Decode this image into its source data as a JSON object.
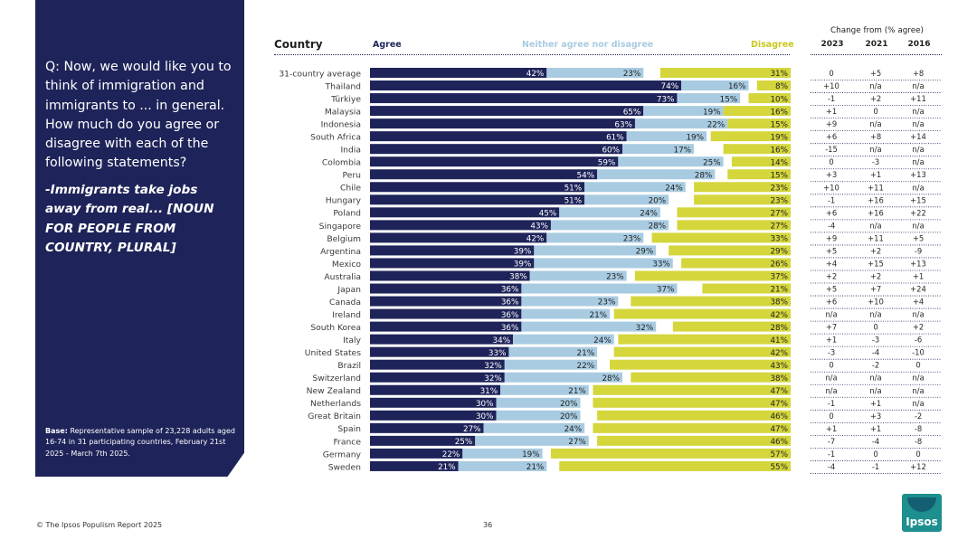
{
  "sidebar": {
    "question": "Q: Now, we would like you to think of immigration and immigrants to ... in general. How much do you agree or disagree with each of the following statements?",
    "statement": "-Immigrants take jobs away from real... [NOUN FOR PEOPLE FROM COUNTRY, PLURAL]",
    "base_label": "Base:",
    "base_text": "Representative sample of 23,228 adults aged 16-74 in 31 participating countries, February 21st 2025 - March 7th 2025."
  },
  "header": {
    "country": "Country",
    "agree": "Agree",
    "neither": "Neither agree nor disagree",
    "disagree": "Disagree",
    "change_from": "Change from (% agree)",
    "years": [
      "2023",
      "2021",
      "2016"
    ]
  },
  "colors": {
    "agree": "#1e2459",
    "neither": "#a8cbe1",
    "disagree": "#d4d63c",
    "sidebar": "#1e2459"
  },
  "chart_data": {
    "type": "bar",
    "stacked": true,
    "orientation": "horizontal",
    "categories": [
      "31-country average",
      "Thailand",
      "Türkiye",
      "Malaysia",
      "Indonesia",
      "South Africa",
      "India",
      "Colombia",
      "Peru",
      "Chile",
      "Hungary",
      "Poland",
      "Singapore",
      "Belgium",
      "Argentina",
      "Mexico",
      "Australia",
      "Japan",
      "Canada",
      "Ireland",
      "South Korea",
      "Italy",
      "United States",
      "Brazil",
      "Switzerland",
      "New Zealand",
      "Netherlands",
      "Great Britain",
      "Spain",
      "France",
      "Germany",
      "Sweden"
    ],
    "series": [
      {
        "name": "Agree",
        "values": [
          42,
          74,
          73,
          65,
          63,
          61,
          60,
          59,
          54,
          51,
          51,
          45,
          43,
          42,
          39,
          39,
          38,
          36,
          36,
          36,
          36,
          34,
          33,
          32,
          32,
          31,
          30,
          30,
          27,
          25,
          22,
          21
        ]
      },
      {
        "name": "Neither agree nor disagree",
        "values": [
          23,
          16,
          15,
          19,
          22,
          19,
          17,
          25,
          28,
          24,
          20,
          24,
          28,
          23,
          29,
          33,
          23,
          37,
          23,
          21,
          32,
          24,
          21,
          22,
          28,
          21,
          20,
          20,
          24,
          27,
          19,
          21
        ]
      },
      {
        "name": "Disagree",
        "values": [
          31,
          8,
          10,
          16,
          15,
          19,
          16,
          14,
          15,
          23,
          23,
          27,
          27,
          33,
          29,
          26,
          37,
          21,
          38,
          42,
          28,
          41,
          42,
          43,
          38,
          47,
          47,
          46,
          47,
          46,
          57,
          55
        ]
      }
    ],
    "change": {
      "2023": [
        "0",
        "+10",
        "-1",
        "+1",
        "+9",
        "+6",
        "-15",
        "0",
        "+3",
        "+10",
        "-1",
        "+6",
        "-4",
        "+9",
        "+5",
        "+4",
        "+2",
        "+5",
        "+6",
        "n/a",
        "+7",
        "+1",
        "-3",
        "0",
        "n/a",
        "n/a",
        "-1",
        "0",
        "+1",
        "-7",
        "-1",
        "-4"
      ],
      "2021": [
        "+5",
        "n/a",
        "+2",
        "0",
        "n/a",
        "+8",
        "n/a",
        "-3",
        "+1",
        "+11",
        "+16",
        "+16",
        "n/a",
        "+11",
        "+2",
        "+15",
        "+2",
        "+7",
        "+10",
        "n/a",
        "0",
        "-3",
        "-4",
        "-2",
        "n/a",
        "n/a",
        "+1",
        "+3",
        "+1",
        "-4",
        "0",
        "-1"
      ],
      "2016": [
        "+8",
        "n/a",
        "+11",
        "n/a",
        "n/a",
        "+14",
        "n/a",
        "n/a",
        "+13",
        "n/a",
        "+15",
        "+22",
        "n/a",
        "+5",
        "-9",
        "+13",
        "+1",
        "+24",
        "+4",
        "n/a",
        "+2",
        "-6",
        "-10",
        "0",
        "n/a",
        "n/a",
        "n/a",
        "-2",
        "-8",
        "-8",
        "0",
        "+12"
      ]
    },
    "xlim": [
      0,
      100
    ],
    "legend": "top"
  },
  "footer": {
    "copyright": "© The Ipsos Populism Report 2025",
    "page": "36",
    "logo": "Ipsos"
  }
}
